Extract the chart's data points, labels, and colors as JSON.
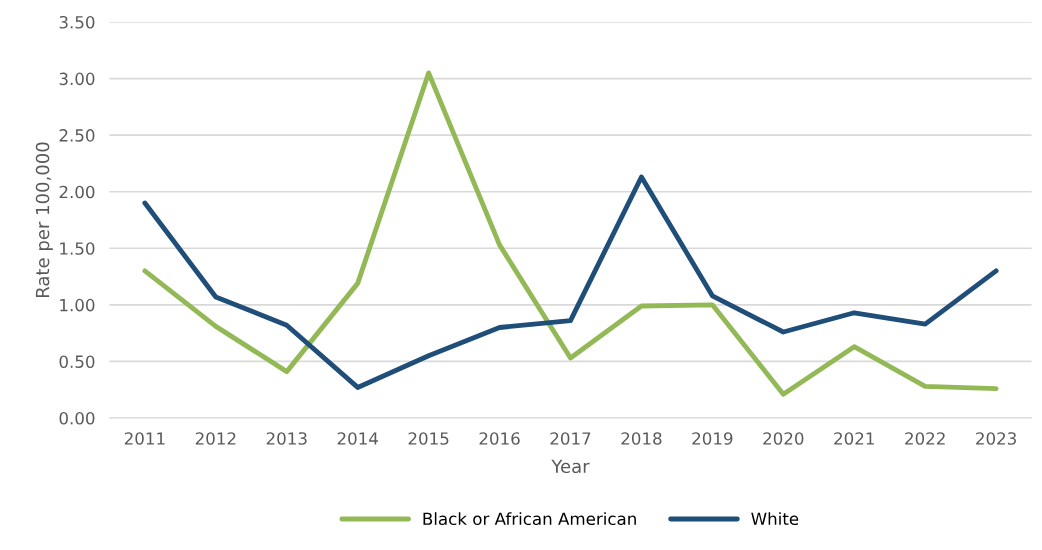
{
  "chart_data": {
    "type": "line",
    "xlabel": "Year",
    "ylabel": "Rate per 100,000",
    "categories": [
      "2011",
      "2012",
      "2013",
      "2014",
      "2015",
      "2016",
      "2017",
      "2018",
      "2019",
      "2020",
      "2021",
      "2022",
      "2023"
    ],
    "series": [
      {
        "name": "Black or African American",
        "color": "#93b956",
        "values": [
          1.3,
          0.81,
          0.41,
          1.19,
          3.05,
          1.53,
          0.53,
          0.99,
          1.0,
          0.21,
          0.63,
          0.28,
          0.26
        ]
      },
      {
        "name": "White",
        "color": "#1f4e79",
        "values": [
          1.9,
          1.07,
          0.82,
          0.27,
          0.55,
          0.8,
          0.86,
          2.13,
          1.08,
          0.76,
          0.93,
          0.83,
          1.3
        ]
      }
    ],
    "ylim": [
      0,
      3.5
    ],
    "yticks": [
      {
        "value": 0,
        "label": "0.00"
      },
      {
        "value": 0.5,
        "label": "0.50"
      },
      {
        "value": 1,
        "label": "1.00"
      },
      {
        "value": 1.5,
        "label": "1.50"
      },
      {
        "value": 2,
        "label": "2.00"
      },
      {
        "value": 2.5,
        "label": "2.50"
      },
      {
        "value": 3,
        "label": "3.00"
      },
      {
        "value": 3.5,
        "label": "3.50"
      }
    ],
    "grid": "y",
    "legend": "bottom",
    "marker": "none",
    "line_style": "solid"
  }
}
